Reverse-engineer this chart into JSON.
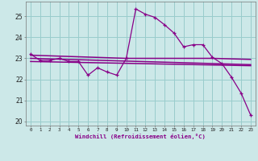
{
  "bg_color": "#cce8e8",
  "line_color": "#880088",
  "grid_color": "#99cccc",
  "xlabel": "Windchill (Refroidissement éolien,°C)",
  "xlim": [
    -0.5,
    23.5
  ],
  "ylim": [
    19.8,
    25.7
  ],
  "yticks": [
    20,
    21,
    22,
    23,
    24,
    25
  ],
  "xticks": [
    0,
    1,
    2,
    3,
    4,
    5,
    6,
    7,
    8,
    9,
    10,
    11,
    12,
    13,
    14,
    15,
    16,
    17,
    18,
    19,
    20,
    21,
    22,
    23
  ],
  "series1_x": [
    0,
    1,
    2,
    3,
    4,
    5,
    6,
    7,
    8,
    9,
    10,
    11,
    12,
    13,
    14,
    15,
    16,
    17,
    18,
    19,
    20,
    21,
    22,
    23
  ],
  "series1_y": [
    23.2,
    22.9,
    22.9,
    23.0,
    22.85,
    22.85,
    22.2,
    22.55,
    22.35,
    22.2,
    23.0,
    25.35,
    25.1,
    24.95,
    24.6,
    24.2,
    23.55,
    23.65,
    23.65,
    23.05,
    22.75,
    22.1,
    21.35,
    20.3
  ],
  "series2_x": [
    0,
    10,
    19,
    23
  ],
  "series2_y": [
    23.15,
    23.0,
    23.0,
    22.95
  ],
  "series3_x": [
    0,
    23
  ],
  "series3_y": [
    23.0,
    22.7
  ],
  "series4_x": [
    0,
    23
  ],
  "series4_y": [
    22.85,
    22.65
  ]
}
